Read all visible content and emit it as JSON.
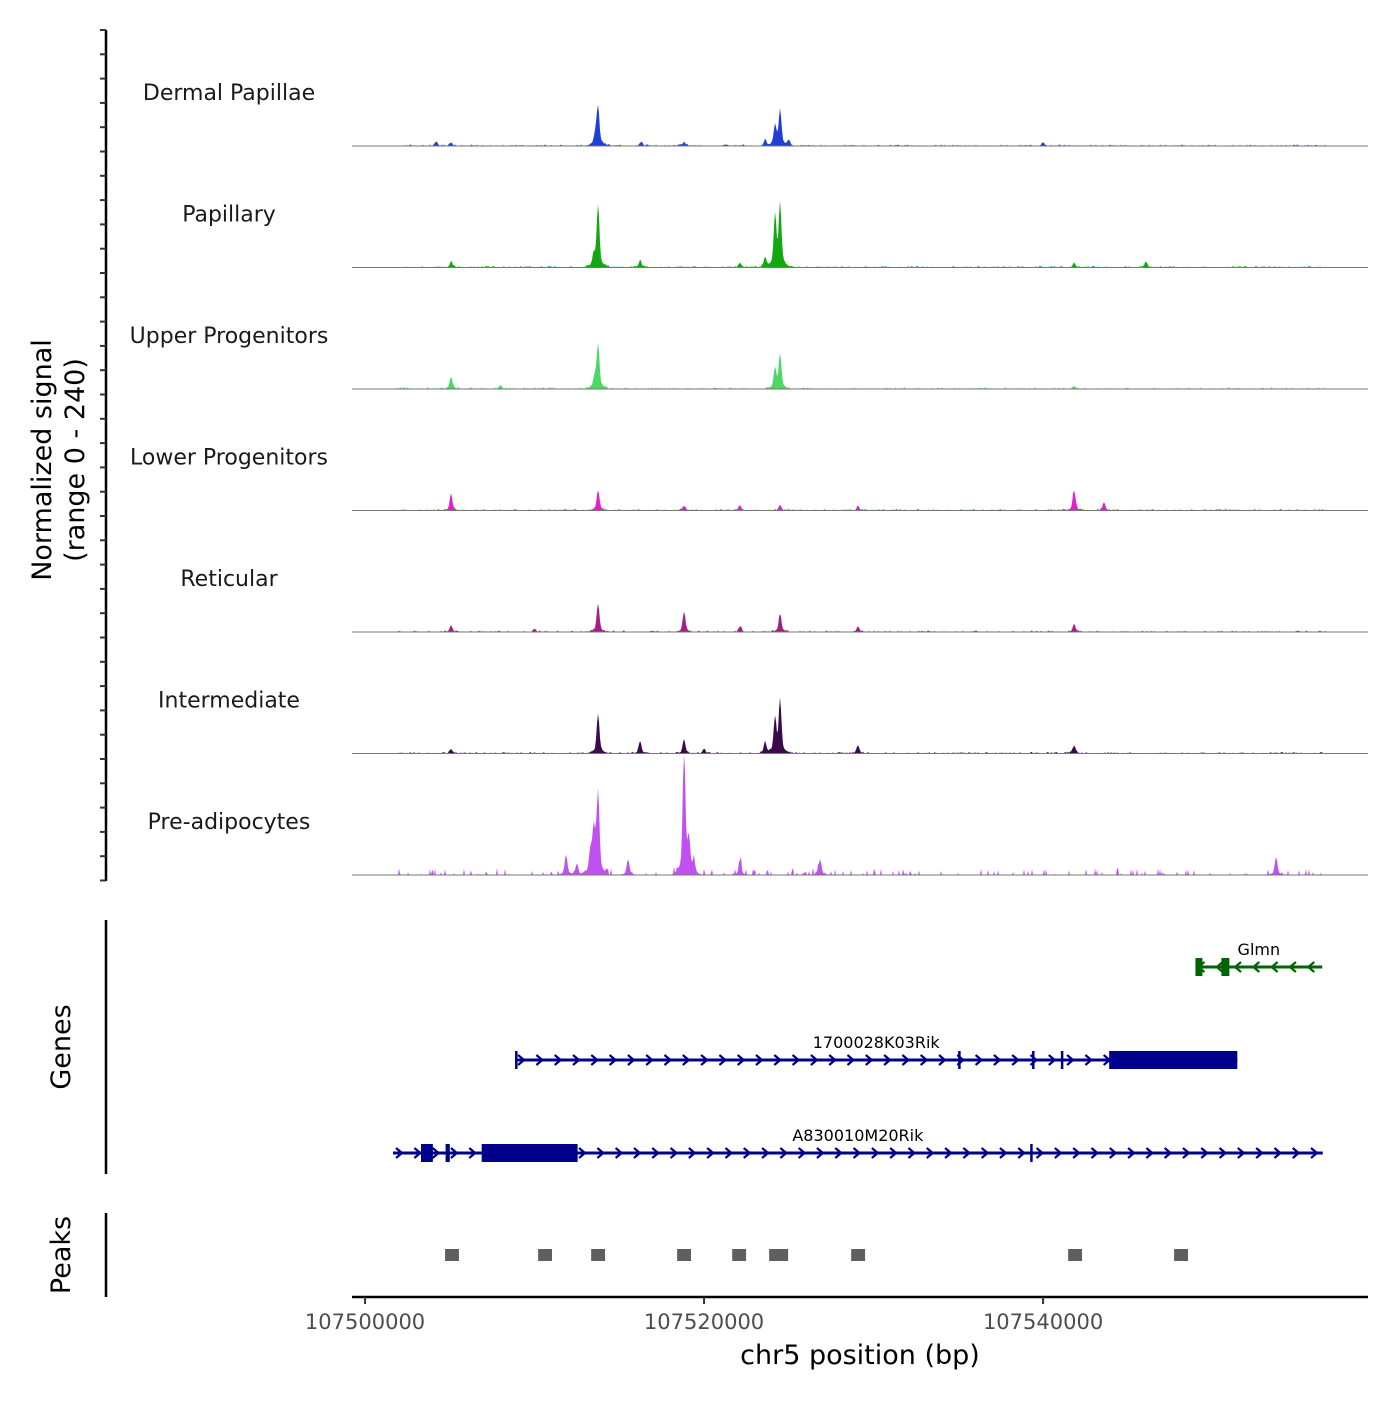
{
  "chart_data": {
    "type": "area",
    "title": "",
    "ylabel": "Normalized signal",
    "ylabel_range": "(range 0 - 240)",
    "ylim": [
      0,
      240
    ],
    "xlabel": "chr5 position (bp)",
    "xlim": [
      107499230,
      107559170
    ],
    "xticks": [
      107500000,
      107520000,
      107540000
    ],
    "xtick_labels": [
      "107500000",
      "107520000",
      "107540000"
    ],
    "tracks": [
      {
        "name": "Dermal Papillae",
        "color": "#1f3fd6",
        "peaks": [
          [
            107513747,
            67
          ],
          [
            107524485,
            63
          ],
          [
            107524190,
            36
          ],
          [
            107513600,
            20
          ],
          [
            107504200,
            8
          ],
          [
            107505074,
            6
          ],
          [
            107516300,
            6
          ],
          [
            107518821,
            7
          ],
          [
            107523600,
            10
          ],
          [
            107525000,
            10
          ],
          [
            107540000,
            6
          ]
        ]
      },
      {
        "name": "Papillary",
        "color": "#12a812",
        "peaks": [
          [
            107513747,
            111
          ],
          [
            107524485,
            111
          ],
          [
            107524190,
            89
          ],
          [
            107523600,
            18
          ],
          [
            107516225,
            12
          ],
          [
            107505074,
            10
          ],
          [
            107541831,
            8
          ],
          [
            107546079,
            10
          ],
          [
            107522125,
            8
          ],
          [
            107513500,
            20
          ]
        ]
      },
      {
        "name": "Upper Progenitors",
        "color": "#4cd864",
        "peaks": [
          [
            107513747,
            79
          ],
          [
            107524485,
            61
          ],
          [
            107524190,
            36
          ],
          [
            107505074,
            22
          ],
          [
            107513550,
            20
          ],
          [
            107508000,
            6
          ],
          [
            107541831,
            5
          ]
        ]
      },
      {
        "name": "Lower Progenitors",
        "color": "#e020d0",
        "peaks": [
          [
            107513747,
            36
          ],
          [
            107505074,
            28
          ],
          [
            107541831,
            36
          ],
          [
            107543601,
            14
          ],
          [
            107524485,
            10
          ],
          [
            107518821,
            8
          ],
          [
            107522125,
            8
          ],
          [
            107529087,
            6
          ]
        ]
      },
      {
        "name": "Reticular",
        "color": "#a0208a",
        "peaks": [
          [
            107513747,
            51
          ],
          [
            107518821,
            36
          ],
          [
            107524485,
            32
          ],
          [
            107505074,
            12
          ],
          [
            107522125,
            10
          ],
          [
            107529087,
            10
          ],
          [
            107541831,
            14
          ],
          [
            107510000,
            6
          ]
        ]
      },
      {
        "name": "Intermediate",
        "color": "#3a0a4a",
        "peaks": [
          [
            107513747,
            71
          ],
          [
            107524485,
            93
          ],
          [
            107524190,
            59
          ],
          [
            107523600,
            20
          ],
          [
            107516225,
            22
          ],
          [
            107518821,
            24
          ],
          [
            107529087,
            14
          ],
          [
            107541831,
            14
          ],
          [
            107505074,
            8
          ],
          [
            107520000,
            8
          ]
        ]
      },
      {
        "name": "Pre-adipocytes",
        "color": "#c050f0",
        "peaks": [
          [
            107518821,
            212
          ],
          [
            107513747,
            146
          ],
          [
            107513500,
            80
          ],
          [
            107513300,
            40
          ],
          [
            107519100,
            60
          ],
          [
            107511859,
            36
          ],
          [
            107515517,
            28
          ],
          [
            107522125,
            26
          ],
          [
            107526845,
            28
          ],
          [
            107553749,
            32
          ],
          [
            107519400,
            22
          ],
          [
            107512500,
            20
          ]
        ]
      }
    ],
    "genes": [
      {
        "name": "Glmn",
        "strand": "-",
        "color": "#006400",
        "start": 107548990,
        "end": 107556470,
        "exons": [
          [
            107548990,
            107549400
          ],
          [
            107550520,
            107550990
          ]
        ]
      },
      {
        "name": "1700028K03Rik",
        "strand": "+",
        "color": "#00008b",
        "start": 107508850,
        "end": 107551460,
        "exons": [
          [
            107508850,
            107508950
          ],
          [
            107534990,
            107535050
          ],
          [
            107539350,
            107539410
          ],
          [
            107541050,
            107541120
          ],
          [
            107543900,
            107551460
          ]
        ]
      },
      {
        "name": "A830010M20Rik",
        "strand": "+",
        "color": "#00008b",
        "start": 107501650,
        "end": 107556500,
        "exons": [
          [
            107503300,
            107504000
          ],
          [
            107504750,
            107505000
          ],
          [
            107506880,
            107512540
          ],
          [
            107539240,
            107539300
          ]
        ]
      }
    ],
    "peaks": [
      [
        107504720,
        107505540
      ],
      [
        107510210,
        107511030
      ],
      [
        107513340,
        107514160
      ],
      [
        107518410,
        107519230
      ],
      [
        107521660,
        107522480
      ],
      [
        107523840,
        107524960
      ],
      [
        107528680,
        107529500
      ],
      [
        107541480,
        107542300
      ],
      [
        107547730,
        107548550
      ]
    ],
    "panel_labels": {
      "genes": "Genes",
      "peaks": "Peaks"
    }
  }
}
